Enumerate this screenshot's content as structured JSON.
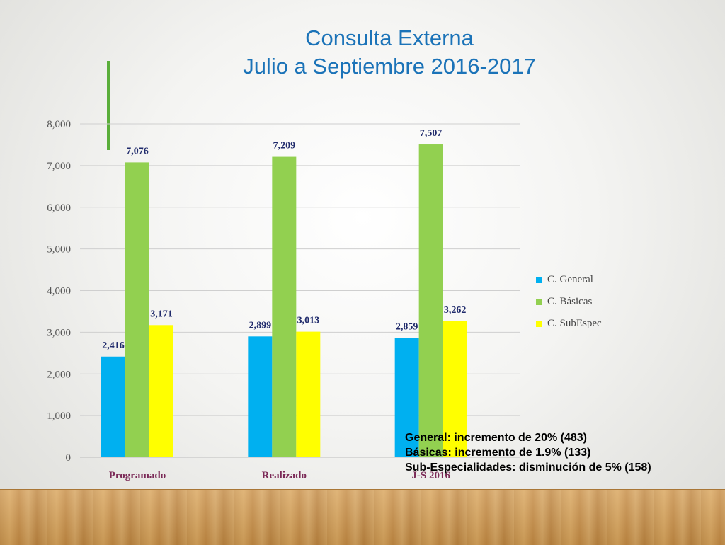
{
  "slide": {
    "title_line1": "Consulta Externa",
    "title_line2": "Julio a Septiembre 2016-2017",
    "notes": [
      "General: incremento de 20% (483)",
      "Básicas: incremento de 1.9% (133)",
      "Sub-Especialidades: disminución de 5% (158)"
    ]
  },
  "colors": {
    "title": "#1b73b8",
    "accent_bar": "#5aae3a",
    "data_label": "#1f2a6b"
  },
  "chart_data": {
    "type": "bar",
    "categories": [
      "Programado",
      "Realizado",
      "J-S 2016"
    ],
    "series": [
      {
        "name": "C. General",
        "color": "#00b0f0",
        "values": [
          2416,
          2899,
          2859
        ],
        "labels": [
          "2,416",
          "2,899",
          "2,859"
        ]
      },
      {
        "name": "C. Básicas",
        "color": "#92d050",
        "values": [
          7076,
          7209,
          7507
        ],
        "labels": [
          "7,076",
          "7,209",
          "7,507"
        ]
      },
      {
        "name": "C. SubEspec",
        "color": "#ffff00",
        "values": [
          3171,
          3013,
          3262
        ],
        "labels": [
          "3,171",
          "3,013",
          "3,262"
        ]
      }
    ],
    "yticks": [
      "0",
      "1,000",
      "2,000",
      "3,000",
      "4,000",
      "5,000",
      "6,000",
      "7,000",
      "8,000"
    ],
    "ylim": [
      0,
      8000
    ],
    "grid": true,
    "legend": "right"
  }
}
